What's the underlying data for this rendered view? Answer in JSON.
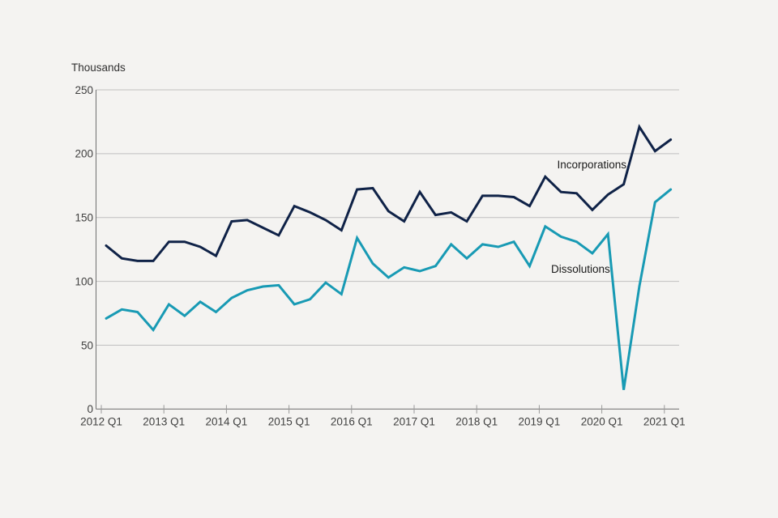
{
  "page": {
    "background_color": "#f4f3f1"
  },
  "chart_data": {
    "type": "line",
    "unit_label": "Thousands",
    "x": [
      "2012 Q1",
      "2012 Q2",
      "2012 Q3",
      "2012 Q4",
      "2013 Q1",
      "2013 Q2",
      "2013 Q3",
      "2013 Q4",
      "2014 Q1",
      "2014 Q2",
      "2014 Q3",
      "2014 Q4",
      "2015 Q1",
      "2015 Q2",
      "2015 Q3",
      "2015 Q4",
      "2016 Q1",
      "2016 Q2",
      "2016 Q3",
      "2016 Q4",
      "2017 Q1",
      "2017 Q2",
      "2017 Q3",
      "2017 Q4",
      "2018 Q1",
      "2018 Q2",
      "2018 Q3",
      "2018 Q4",
      "2019 Q1",
      "2019 Q2",
      "2019 Q3",
      "2019 Q4",
      "2020 Q1",
      "2020 Q2",
      "2020 Q3",
      "2020 Q4",
      "2021 Q1"
    ],
    "x_tick_labels": [
      "2012 Q1",
      "2013 Q1",
      "2014 Q1",
      "2015 Q1",
      "2016 Q1",
      "2017 Q1",
      "2018 Q1",
      "2019 Q1",
      "2020 Q1",
      "2021 Q1"
    ],
    "y_ticks": [
      0,
      50,
      100,
      150,
      200,
      250
    ],
    "ylim": [
      0,
      250
    ],
    "grid": "horizontal-only",
    "legend": "inline-series-labels",
    "series": [
      {
        "name": "Incorporations",
        "color": "#0f2247",
        "values": [
          128,
          118,
          116,
          116,
          131,
          131,
          127,
          120,
          147,
          148,
          142,
          136,
          159,
          154,
          148,
          140,
          172,
          173,
          155,
          147,
          170,
          152,
          154,
          147,
          167,
          167,
          166,
          159,
          182,
          170,
          169,
          156,
          168,
          176,
          221,
          202,
          211
        ],
        "label_anchor": {
          "x": 773,
          "y": 208,
          "align": "end"
        }
      },
      {
        "name": "Dissolutions",
        "color": "#189ab4",
        "values": [
          71,
          78,
          76,
          62,
          82,
          73,
          84,
          76,
          87,
          93,
          96,
          97,
          82,
          86,
          99,
          90,
          134,
          114,
          103,
          111,
          108,
          112,
          129,
          118,
          129,
          127,
          131,
          112,
          143,
          135,
          131,
          122,
          137,
          15,
          96,
          162,
          172
        ],
        "label_anchor": {
          "x": 680,
          "y": 337,
          "align": "start"
        }
      }
    ],
    "colors": {
      "gridline": "#bfbfbf",
      "axis": "#6f6f6f",
      "tick_mark": "#9a9a9a"
    }
  }
}
